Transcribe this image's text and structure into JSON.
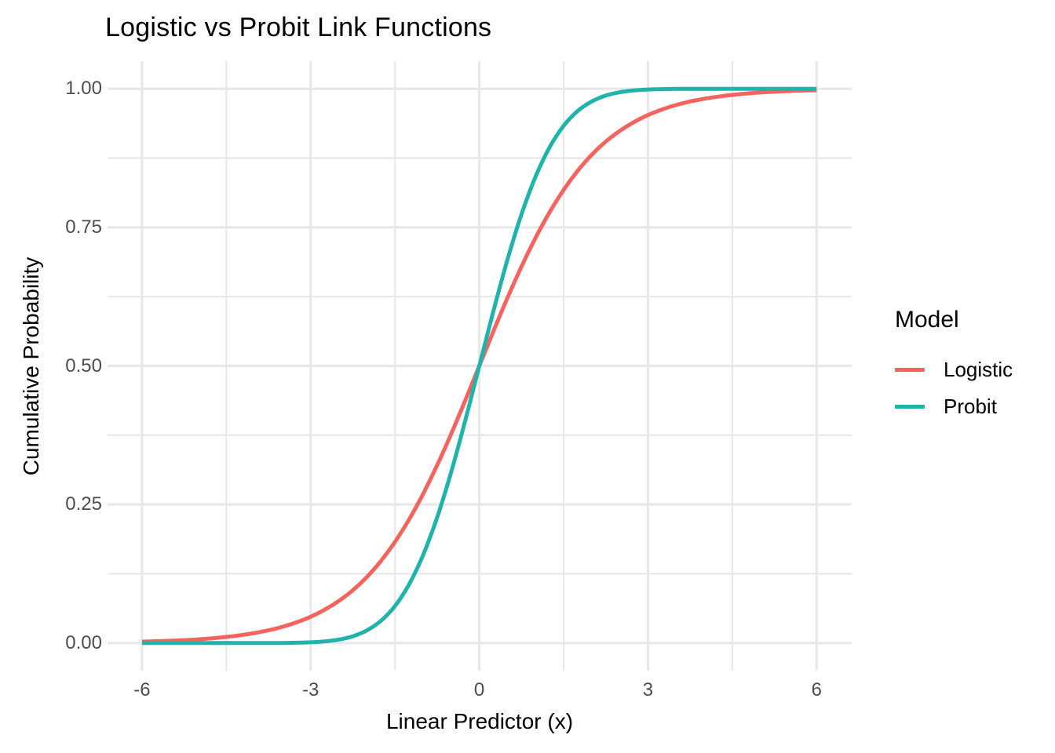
{
  "chart_data": {
    "type": "line",
    "title": "Logistic vs Probit Link Functions",
    "xlabel": "Linear Predictor (x)",
    "ylabel": "Cumulative Probability",
    "xlim": [
      -6.6,
      6.6
    ],
    "ylim": [
      -0.05,
      1.05
    ],
    "grid": "on",
    "x_ticks": {
      "values": [
        -6,
        -3,
        0,
        3,
        6
      ],
      "labels": [
        "-6",
        "-3",
        "0",
        "3",
        "6"
      ]
    },
    "y_ticks": {
      "values": [
        0,
        0.25,
        0.5,
        0.75,
        1
      ],
      "labels": [
        "0.00",
        "0.25",
        "0.50",
        "0.75",
        "1.00"
      ]
    },
    "x_minor_gridlines": [
      -4.5,
      -1.5,
      1.5,
      4.5
    ],
    "y_minor_gridlines": [
      0.125,
      0.375,
      0.625,
      0.875
    ],
    "legend": {
      "title": "Model",
      "position": "right"
    },
    "x": [
      -6,
      -5.75,
      -5.5,
      -5.25,
      -5,
      -4.75,
      -4.5,
      -4.25,
      -4,
      -3.75,
      -3.5,
      -3.25,
      -3,
      -2.75,
      -2.5,
      -2.25,
      -2,
      -1.75,
      -1.5,
      -1.25,
      -1,
      -0.75,
      -0.5,
      -0.25,
      0,
      0.25,
      0.5,
      0.75,
      1,
      1.25,
      1.5,
      1.75,
      2,
      2.25,
      2.5,
      2.75,
      3,
      3.25,
      3.5,
      3.75,
      4,
      4.25,
      4.5,
      4.75,
      5,
      5.25,
      5.5,
      5.75,
      6
    ],
    "series": [
      {
        "name": "Logistic",
        "color": "#F4635D",
        "values": [
          0.0025,
          0.0032,
          0.0041,
          0.0052,
          0.0067,
          0.0086,
          0.011,
          0.0141,
          0.018,
          0.0229,
          0.0293,
          0.0373,
          0.0474,
          0.0601,
          0.0759,
          0.0953,
          0.1192,
          0.148,
          0.1824,
          0.2227,
          0.2689,
          0.3208,
          0.3775,
          0.4378,
          0.5,
          0.5622,
          0.6225,
          0.6792,
          0.7311,
          0.7773,
          0.8176,
          0.852,
          0.8808,
          0.9047,
          0.9241,
          0.9399,
          0.9526,
          0.9627,
          0.9707,
          0.9771,
          0.982,
          0.9859,
          0.989,
          0.9914,
          0.9933,
          0.9948,
          0.9959,
          0.9968,
          0.9975
        ]
      },
      {
        "name": "Probit",
        "color": "#1EB3AB",
        "values": [
          0,
          0,
          0,
          0,
          0,
          0,
          0,
          0,
          0,
          0.0001,
          0.0002,
          0.0006,
          0.0013,
          0.003,
          0.0062,
          0.0122,
          0.0228,
          0.0401,
          0.0668,
          0.1056,
          0.1587,
          0.2266,
          0.3085,
          0.4013,
          0.5,
          0.5987,
          0.6915,
          0.7734,
          0.8413,
          0.8944,
          0.9332,
          0.9599,
          0.9772,
          0.9878,
          0.9938,
          0.997,
          0.9987,
          0.9994,
          0.9998,
          0.9999,
          1,
          1,
          1,
          1,
          1,
          1,
          1,
          1,
          1
        ]
      }
    ],
    "style": {
      "background": "#FFFFFF",
      "grid_color": "#E8E8E8",
      "tick_label_color": "#4D4D4D",
      "text_color": "#000000",
      "line_width": 5
    }
  }
}
